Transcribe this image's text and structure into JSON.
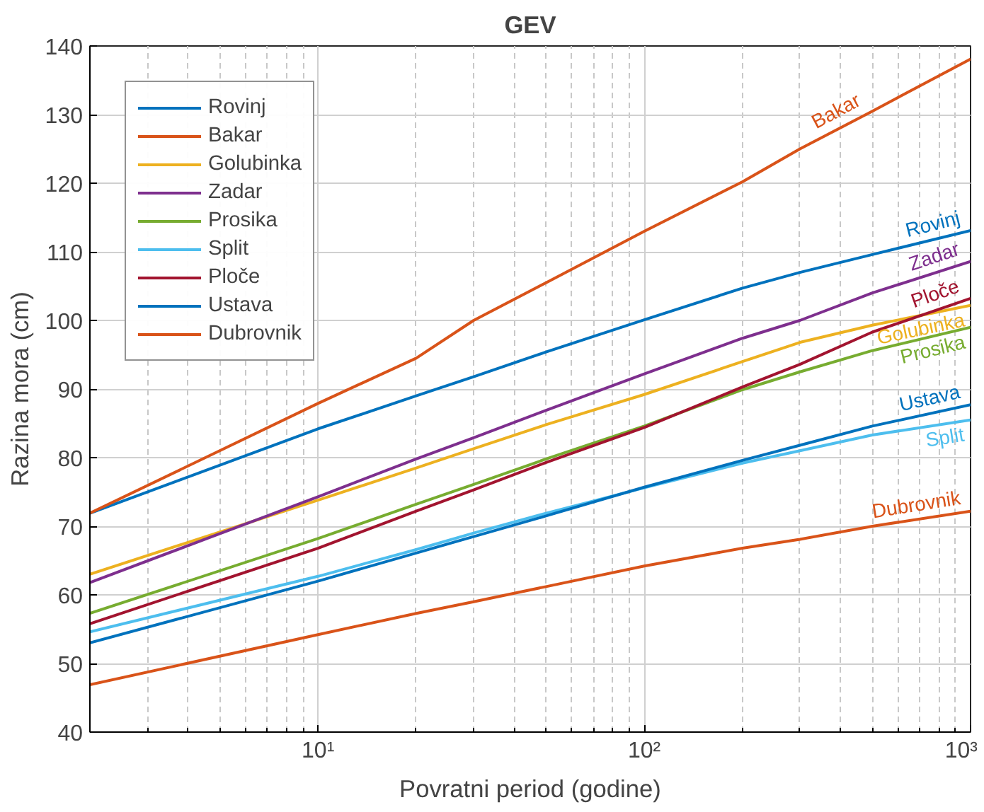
{
  "chart_data": {
    "type": "line",
    "title": "GEV",
    "xlabel": "Povratni period (godine)",
    "ylabel": "Razina mora (cm)",
    "log": "x",
    "grid": true,
    "legend": "top left",
    "line_style": "solid",
    "marker": "none",
    "xlim": [
      2,
      1000
    ],
    "ylim": [
      40,
      140
    ],
    "xticks": [
      {
        "value": 2,
        "label": null
      },
      {
        "value": 3,
        "label": null
      },
      {
        "value": 4,
        "label": null
      },
      {
        "value": 5,
        "label": null
      },
      {
        "value": 6,
        "label": null
      },
      {
        "value": 7,
        "label": null
      },
      {
        "value": 8,
        "label": null
      },
      {
        "value": 9,
        "label": null
      },
      {
        "value": 10,
        "label": "10¹"
      },
      {
        "value": 20,
        "label": null
      },
      {
        "value": 30,
        "label": null
      },
      {
        "value": 40,
        "label": null
      },
      {
        "value": 50,
        "label": null
      },
      {
        "value": 60,
        "label": null
      },
      {
        "value": 70,
        "label": null
      },
      {
        "value": 80,
        "label": null
      },
      {
        "value": 90,
        "label": null
      },
      {
        "value": 100,
        "label": "10²"
      },
      {
        "value": 200,
        "label": null
      },
      {
        "value": 300,
        "label": null
      },
      {
        "value": 400,
        "label": null
      },
      {
        "value": 500,
        "label": null
      },
      {
        "value": 600,
        "label": null
      },
      {
        "value": 700,
        "label": null
      },
      {
        "value": 800,
        "label": null
      },
      {
        "value": 900,
        "label": null
      },
      {
        "value": 1000,
        "label": "10³"
      }
    ],
    "yticks": [
      40,
      50,
      60,
      70,
      80,
      90,
      100,
      110,
      120,
      130,
      140
    ],
    "x": [
      2,
      10,
      20,
      30,
      50,
      100,
      200,
      300,
      500,
      1000
    ],
    "series": [
      {
        "name": "Rovinj",
        "color": "#0072bd",
        "values": [
          71.9,
          84.2,
          89,
          91.8,
          95.4,
          100.1,
          104.7,
          107,
          109.6,
          113.1
        ]
      },
      {
        "name": "Bakar",
        "color": "#d95319",
        "values": [
          71.9,
          87.9,
          94.5,
          100,
          105.5,
          113,
          120.2,
          125,
          130.5,
          138.1
        ]
      },
      {
        "name": "Golubinka",
        "color": "#edb120",
        "values": [
          63,
          73.8,
          78.5,
          81.3,
          84.8,
          89.2,
          94,
          96.8,
          99.3,
          102.2
        ]
      },
      {
        "name": "Zadar",
        "color": "#7e2f8e",
        "values": [
          61.8,
          74.3,
          79.8,
          82.9,
          86.9,
          92.2,
          97.4,
          100,
          104,
          108.6
        ]
      },
      {
        "name": "Prosika",
        "color": "#77ac30",
        "values": [
          57.3,
          68.2,
          73.2,
          76.1,
          79.8,
          84.6,
          89.9,
          92.5,
          95.6,
          99
        ]
      },
      {
        "name": "Split",
        "color": "#4dbeee",
        "values": [
          54.6,
          62.7,
          66.6,
          69,
          71.9,
          75.6,
          79.2,
          81,
          83.3,
          85.5
        ]
      },
      {
        "name": "Ploče",
        "color": "#a2142f",
        "values": [
          55.8,
          66.8,
          72.2,
          75.3,
          79.3,
          84.4,
          90.3,
          93.6,
          98.3,
          103.2
        ]
      },
      {
        "name": "Ustava",
        "color": "#0072bd",
        "values": [
          53,
          62,
          66.1,
          68.5,
          71.5,
          75.7,
          79.6,
          81.8,
          84.6,
          87.7
        ]
      },
      {
        "name": "Dubrovnik",
        "color": "#d95319",
        "values": [
          46.9,
          54.2,
          57.3,
          59,
          61.2,
          64.2,
          66.8,
          68.1,
          70,
          72.2
        ]
      }
    ]
  }
}
